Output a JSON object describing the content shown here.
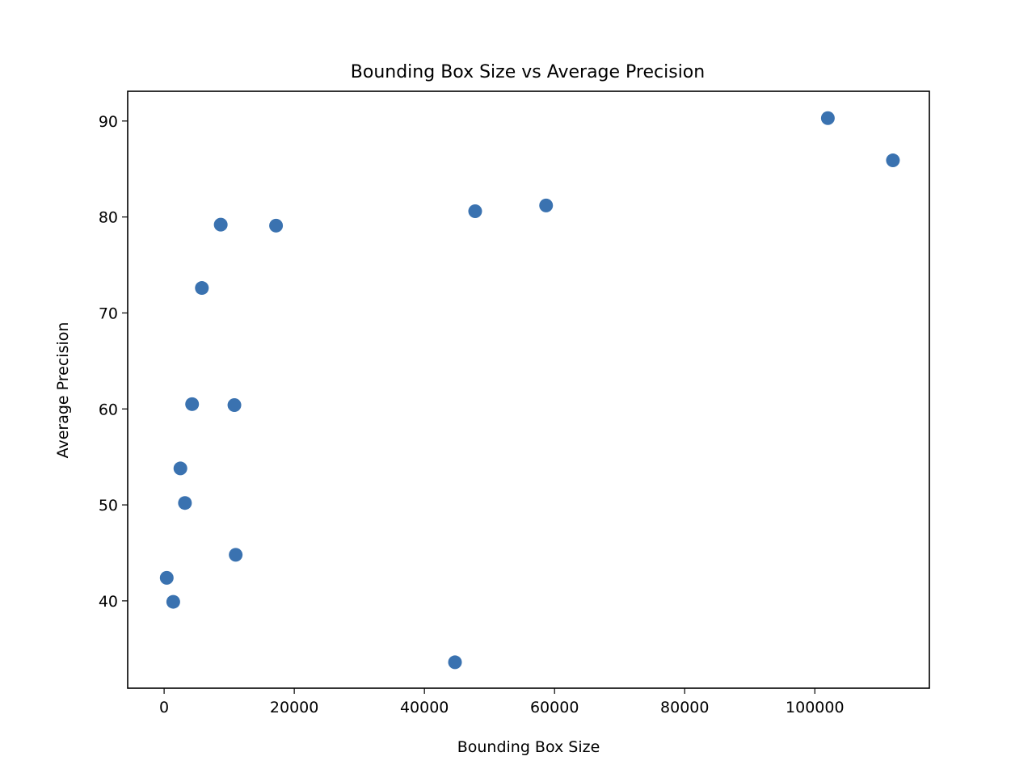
{
  "chart_data": {
    "type": "scatter",
    "title": "Bounding Box Size vs Average Precision",
    "xlabel": "Bounding Box Size",
    "ylabel": "Average Precision",
    "xlim": [
      -5600,
      117600
    ],
    "ylim": [
      30.9,
      93.1
    ],
    "xticks": [
      0,
      20000,
      40000,
      60000,
      80000,
      100000
    ],
    "yticks": [
      40,
      50,
      60,
      70,
      80,
      90
    ],
    "grid": false,
    "marker_color": "#3a72b0",
    "points": [
      {
        "x": 102000,
        "y": 90.3
      },
      {
        "x": 112000,
        "y": 85.9
      },
      {
        "x": 58700,
        "y": 81.2
      },
      {
        "x": 47800,
        "y": 80.6
      },
      {
        "x": 8700,
        "y": 79.2
      },
      {
        "x": 17200,
        "y": 79.1
      },
      {
        "x": 5800,
        "y": 72.6
      },
      {
        "x": 4300,
        "y": 60.5
      },
      {
        "x": 10800,
        "y": 60.4
      },
      {
        "x": 2500,
        "y": 53.8
      },
      {
        "x": 3200,
        "y": 50.2
      },
      {
        "x": 11000,
        "y": 44.8
      },
      {
        "x": 400,
        "y": 42.4
      },
      {
        "x": 1400,
        "y": 39.9
      },
      {
        "x": 44700,
        "y": 33.6
      }
    ]
  }
}
